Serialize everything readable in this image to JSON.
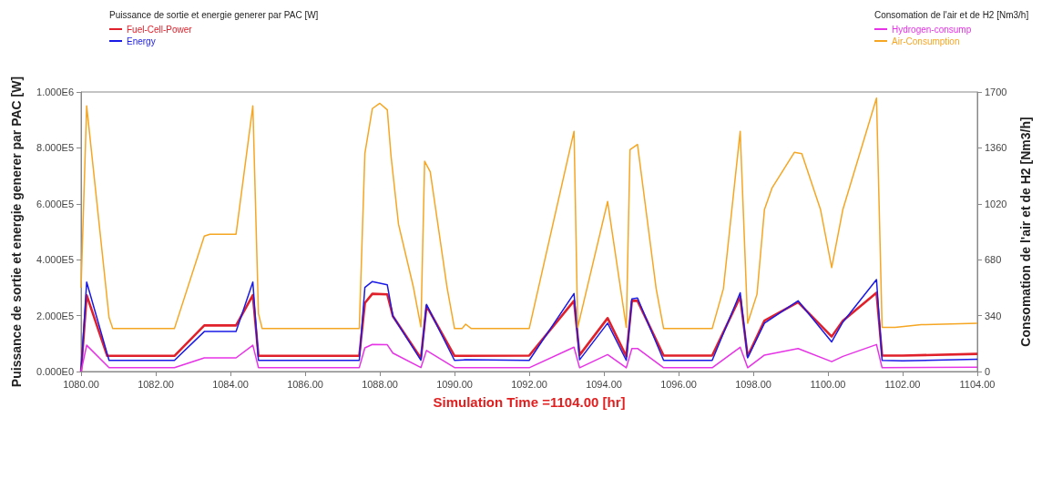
{
  "chart_data": {
    "type": "line",
    "xlabel": "Simulation Time =1104.00 [hr]",
    "ylabel": "Puissance de sortie et energie generer par PAC [W]",
    "y2label": "Consomation de l'air et de H2 [Nm3/h]",
    "legend_title": "Puissance de sortie et energie generer par PAC [W]",
    "annotations": [
      "Consomation de l'air et de H2 [Nm3/h]"
    ],
    "legend": "top",
    "grid": false,
    "marker": "none",
    "line_style": "solid",
    "xlim": [
      1080,
      1104
    ],
    "xticks": [
      {
        "value": 1080,
        "label": "1080.00"
      },
      {
        "value": 1082,
        "label": "1082.00"
      },
      {
        "value": 1084,
        "label": "1084.00"
      },
      {
        "value": 1086,
        "label": "1086.00"
      },
      {
        "value": 1088,
        "label": "1088.00"
      },
      {
        "value": 1090,
        "label": "1090.00"
      },
      {
        "value": 1092,
        "label": "1092.00"
      },
      {
        "value": 1094,
        "label": "1094.00"
      },
      {
        "value": 1096,
        "label": "1096.00"
      },
      {
        "value": 1098,
        "label": "1098.00"
      },
      {
        "value": 1100,
        "label": "1100.00"
      },
      {
        "value": 1102,
        "label": "1102.00"
      },
      {
        "value": 1104,
        "label": "1104.00"
      }
    ],
    "ylim": [
      0,
      1000000
    ],
    "yticks": [
      {
        "value": 0,
        "label": "0.000E0"
      },
      {
        "value": 200000,
        "label": "2.000E5"
      },
      {
        "value": 400000,
        "label": "4.000E5"
      },
      {
        "value": 600000,
        "label": "6.000E5"
      },
      {
        "value": 800000,
        "label": "8.000E5"
      },
      {
        "value": 1000000,
        "label": "1.000E6"
      }
    ],
    "y2lim": [
      0,
      1700
    ],
    "y2ticks": [
      0,
      340,
      680,
      1020,
      1360,
      1700
    ],
    "series": [
      {
        "name": "Fuel-Cell-Power",
        "color": "#e0202a",
        "x": [
          1080.0,
          1080.15,
          1080.7,
          1082.5,
          1083.3,
          1084.15,
          1084.6,
          1084.75,
          1087.45,
          1087.6,
          1087.8,
          1088.2,
          1088.35,
          1089.1,
          1089.25,
          1090.0,
          1092.0,
          1093.2,
          1093.35,
          1094.1,
          1094.6,
          1094.75,
          1094.9,
          1095.6,
          1096.9,
          1097.65,
          1097.85,
          1098.3,
          1099.2,
          1100.1,
          1100.4,
          1101.3,
          1101.45,
          1102.0,
          1104.0
        ],
        "values": [
          0,
          273000,
          56000,
          56000,
          165000,
          165000,
          273000,
          56000,
          56000,
          245000,
          278000,
          276000,
          198000,
          47000,
          235000,
          56000,
          57000,
          253000,
          59000,
          191000,
          54000,
          253000,
          253000,
          57000,
          57000,
          267000,
          54000,
          182000,
          248000,
          125000,
          182000,
          282000,
          57000,
          57000,
          63000
        ]
      },
      {
        "name": "Energy",
        "color": "#1a1ae6",
        "x": [
          1080.0,
          1080.15,
          1080.75,
          1082.5,
          1083.3,
          1084.15,
          1084.6,
          1084.75,
          1087.45,
          1087.6,
          1087.8,
          1088.2,
          1088.35,
          1089.1,
          1089.25,
          1090.0,
          1090.3,
          1092.0,
          1093.2,
          1093.35,
          1094.1,
          1094.6,
          1094.75,
          1094.9,
          1095.6,
          1096.9,
          1097.65,
          1097.85,
          1098.3,
          1099.2,
          1100.1,
          1100.4,
          1101.3,
          1101.45,
          1102.0,
          1104.0
        ],
        "values": [
          0,
          320000,
          40000,
          40000,
          143000,
          143000,
          320000,
          40000,
          40000,
          301000,
          322000,
          310000,
          198000,
          40000,
          240000,
          40000,
          42000,
          40000,
          279000,
          42000,
          173000,
          40000,
          260000,
          263000,
          40000,
          40000,
          282000,
          49000,
          173000,
          253000,
          106000,
          177000,
          329000,
          40000,
          38000,
          44000
        ]
      },
      {
        "name": "Hydrogen-consump",
        "color": "#e633e6",
        "axis": "y2",
        "x": [
          1080.0,
          1080.15,
          1080.75,
          1082.5,
          1083.3,
          1084.15,
          1084.6,
          1084.75,
          1087.45,
          1087.6,
          1087.8,
          1088.2,
          1088.35,
          1089.1,
          1089.25,
          1090.0,
          1092.0,
          1093.2,
          1093.35,
          1094.1,
          1094.6,
          1094.75,
          1094.9,
          1095.6,
          1096.9,
          1097.65,
          1097.85,
          1098.3,
          1099.2,
          1100.1,
          1100.4,
          1101.3,
          1101.45,
          1104.0
        ],
        "values": [
          0,
          160,
          24,
          24,
          83,
          83,
          160,
          24,
          24,
          144,
          165,
          163,
          112,
          24,
          128,
          24,
          23,
          148,
          23,
          103,
          23,
          140,
          140,
          23,
          23,
          148,
          23,
          100,
          140,
          60,
          92,
          164,
          23,
          26
        ]
      },
      {
        "name": "Air-Consumption",
        "color": "#f5a623",
        "axis": "y2",
        "x": [
          1080.0,
          1080.15,
          1080.75,
          1080.85,
          1082.5,
          1083.3,
          1083.45,
          1084.15,
          1084.6,
          1084.75,
          1084.85,
          1087.45,
          1087.6,
          1087.8,
          1088.0,
          1088.2,
          1088.3,
          1088.5,
          1088.9,
          1089.1,
          1089.2,
          1089.35,
          1089.8,
          1090.0,
          1090.2,
          1090.3,
          1090.45,
          1092.0,
          1093.2,
          1093.3,
          1094.1,
          1094.6,
          1094.7,
          1094.9,
          1095.4,
          1095.6,
          1096.9,
          1097.2,
          1097.65,
          1097.85,
          1098.1,
          1098.3,
          1098.5,
          1099.1,
          1099.3,
          1099.8,
          1100.1,
          1100.4,
          1101.3,
          1101.45,
          1101.8,
          1102.5,
          1104.0
        ],
        "values": [
          510,
          1615,
          328,
          261,
          261,
          824,
          835,
          835,
          1615,
          352,
          261,
          261,
          1327,
          1599,
          1631,
          1591,
          1311,
          896,
          512,
          272,
          1279,
          1215,
          512,
          261,
          261,
          288,
          261,
          261,
          1461,
          269,
          1034,
          269,
          1349,
          1381,
          503,
          261,
          261,
          503,
          1461,
          293,
          470,
          986,
          1115,
          1333,
          1325,
          986,
          632,
          986,
          1663,
          269,
          269,
          285,
          293
        ]
      }
    ]
  }
}
